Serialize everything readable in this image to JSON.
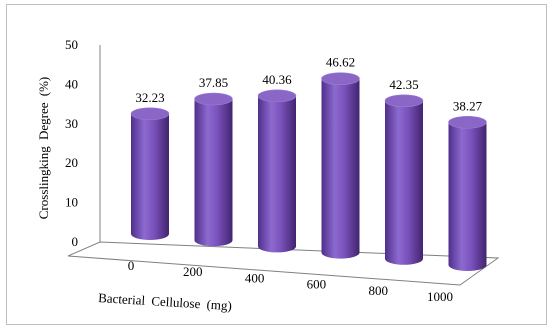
{
  "chart_data": {
    "type": "bar",
    "style": "3d-cylinder",
    "categories": [
      "0",
      "200",
      "400",
      "600",
      "800",
      "1000"
    ],
    "values": [
      32.23,
      37.85,
      40.36,
      46.62,
      42.35,
      38.27
    ],
    "value_labels": [
      "32.23",
      "37.85",
      "40.36",
      "46.62",
      "42.35",
      "38.27"
    ],
    "title": "",
    "xlabel": "Bacterial Cellulose (mg)",
    "ylabel": "Crosslingking Degree (%)",
    "ylim": [
      0,
      50
    ],
    "yticks": [
      "0",
      "10",
      "20",
      "30",
      "40",
      "50"
    ],
    "grid": false,
    "legend": "none",
    "colors": {
      "bar": "#7b52b8",
      "bar_dark": "#4a2b80",
      "bar_light": "#a688dc",
      "top": "#8a66c6",
      "axis": "#808080"
    }
  }
}
